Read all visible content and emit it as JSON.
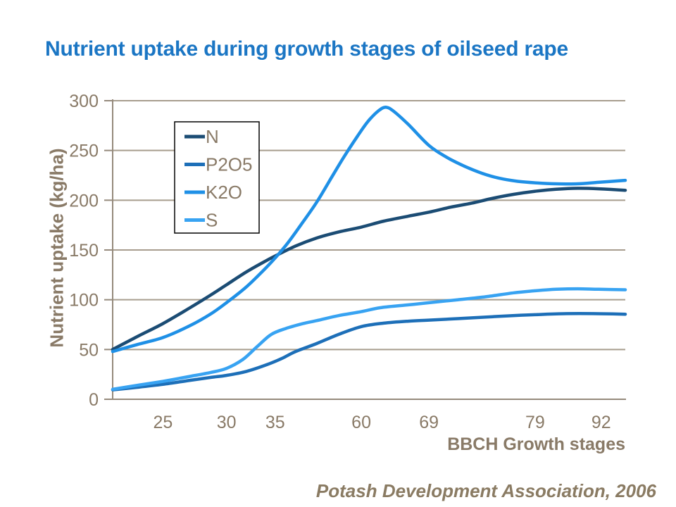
{
  "title": {
    "text": "Nutrient uptake during growth stages of oilseed rape",
    "color": "#1B76C4"
  },
  "y_axis": {
    "title": "Nutrient uptake (kg/ha)",
    "ticks": [
      0,
      50,
      100,
      150,
      200,
      250,
      300
    ],
    "min": 0,
    "max": 300
  },
  "x_axis": {
    "title": "BBCH Growth stages",
    "labels": [
      {
        "text": "25",
        "t": 0.098
      },
      {
        "text": "30",
        "t": 0.222
      },
      {
        "text": "35",
        "t": 0.317
      },
      {
        "text": "60",
        "t": 0.485
      },
      {
        "text": "69",
        "t": 0.617
      },
      {
        "text": "79",
        "t": 0.824
      },
      {
        "text": "92",
        "t": 0.953
      }
    ]
  },
  "footer": {
    "attribution": "Potash Development Association, 2006"
  },
  "styles": {
    "title_color": "#1B76C4",
    "axis_text_color": "#897A67",
    "grid_color": "#A89D8E",
    "axis_line_color": "#958A7C",
    "legend_border_color": "#000000",
    "legend_fill": "#ffffff"
  },
  "chart_data": {
    "type": "line",
    "title": "Nutrient uptake during growth stages of oilseed rape",
    "xlabel": "BBCH Growth stages",
    "ylabel": "Nutrient uptake (kg/ha)",
    "ylim": [
      0,
      300
    ],
    "grid": true,
    "legend_position": "upper-left-inside",
    "x_categories_shown": [
      "25",
      "30",
      "35",
      "60",
      "69",
      "79",
      "92"
    ],
    "stage_values": {
      "stages": [
        "25",
        "30",
        "35",
        "60",
        "69",
        "79",
        "92"
      ],
      "N": [
        76,
        115,
        144,
        173,
        188,
        209,
        211
      ],
      "P2O5": [
        15,
        24,
        34,
        73,
        80,
        85,
        86
      ],
      "K2O": [
        62,
        97,
        142,
        270,
        255,
        218,
        219
      ],
      "S": [
        18,
        31,
        66,
        88,
        97,
        109,
        110
      ]
    },
    "series": [
      {
        "name": "N",
        "color": "#1B4C74",
        "points": [
          [
            0,
            50
          ],
          [
            0.048,
            63
          ],
          [
            0.098,
            76
          ],
          [
            0.151,
            92
          ],
          [
            0.192,
            105
          ],
          [
            0.222,
            115
          ],
          [
            0.261,
            128
          ],
          [
            0.295,
            138
          ],
          [
            0.317,
            144
          ],
          [
            0.357,
            154
          ],
          [
            0.398,
            162
          ],
          [
            0.44,
            168
          ],
          [
            0.485,
            173
          ],
          [
            0.529,
            179
          ],
          [
            0.577,
            184
          ],
          [
            0.617,
            188
          ],
          [
            0.659,
            193
          ],
          [
            0.7,
            197
          ],
          [
            0.742,
            202
          ],
          [
            0.783,
            206
          ],
          [
            0.824,
            209
          ],
          [
            0.865,
            211
          ],
          [
            0.907,
            212
          ],
          [
            0.948,
            211.5
          ],
          [
            1,
            210
          ]
        ]
      },
      {
        "name": "P2O5",
        "color": "#1D6FB8",
        "points": [
          [
            0,
            9.5
          ],
          [
            0.048,
            12
          ],
          [
            0.098,
            15
          ],
          [
            0.151,
            19
          ],
          [
            0.192,
            22
          ],
          [
            0.222,
            24
          ],
          [
            0.261,
            28
          ],
          [
            0.302,
            35
          ],
          [
            0.33,
            41
          ],
          [
            0.357,
            48
          ],
          [
            0.398,
            56
          ],
          [
            0.44,
            65
          ],
          [
            0.485,
            73
          ],
          [
            0.529,
            76.5
          ],
          [
            0.577,
            78.5
          ],
          [
            0.617,
            79.5
          ],
          [
            0.673,
            81
          ],
          [
            0.742,
            83
          ],
          [
            0.797,
            84.5
          ],
          [
            0.824,
            85
          ],
          [
            0.879,
            86
          ],
          [
            0.948,
            86
          ],
          [
            1,
            85.5
          ]
        ]
      },
      {
        "name": "K2O",
        "color": "#1F90E6",
        "points": [
          [
            0,
            48
          ],
          [
            0.048,
            55
          ],
          [
            0.098,
            62
          ],
          [
            0.151,
            74
          ],
          [
            0.192,
            86
          ],
          [
            0.222,
            97
          ],
          [
            0.261,
            113
          ],
          [
            0.295,
            130
          ],
          [
            0.317,
            142
          ],
          [
            0.343,
            158
          ],
          [
            0.371,
            178
          ],
          [
            0.398,
            198
          ],
          [
            0.426,
            222
          ],
          [
            0.453,
            245
          ],
          [
            0.485,
            270
          ],
          [
            0.501,
            281
          ],
          [
            0.519,
            290
          ],
          [
            0.533,
            293.5
          ],
          [
            0.549,
            289
          ],
          [
            0.577,
            276
          ],
          [
            0.617,
            255
          ],
          [
            0.652,
            243
          ],
          [
            0.687,
            234
          ],
          [
            0.721,
            227
          ],
          [
            0.755,
            222
          ],
          [
            0.79,
            219
          ],
          [
            0.824,
            217.5
          ],
          [
            0.865,
            216.5
          ],
          [
            0.907,
            216.5
          ],
          [
            0.948,
            218
          ],
          [
            1,
            220
          ]
        ]
      },
      {
        "name": "S",
        "color": "#38A3F2",
        "points": [
          [
            0,
            10
          ],
          [
            0.048,
            14
          ],
          [
            0.098,
            18
          ],
          [
            0.151,
            23
          ],
          [
            0.192,
            27
          ],
          [
            0.222,
            31
          ],
          [
            0.254,
            40
          ],
          [
            0.282,
            53
          ],
          [
            0.309,
            65
          ],
          [
            0.337,
            71
          ],
          [
            0.371,
            76
          ],
          [
            0.398,
            79
          ],
          [
            0.44,
            84
          ],
          [
            0.485,
            88
          ],
          [
            0.522,
            92
          ],
          [
            0.57,
            94.5
          ],
          [
            0.617,
            97
          ],
          [
            0.673,
            100
          ],
          [
            0.728,
            103
          ],
          [
            0.783,
            107
          ],
          [
            0.824,
            109
          ],
          [
            0.865,
            110.5
          ],
          [
            0.907,
            111
          ],
          [
            0.948,
            110.5
          ],
          [
            1,
            110
          ]
        ]
      }
    ]
  }
}
